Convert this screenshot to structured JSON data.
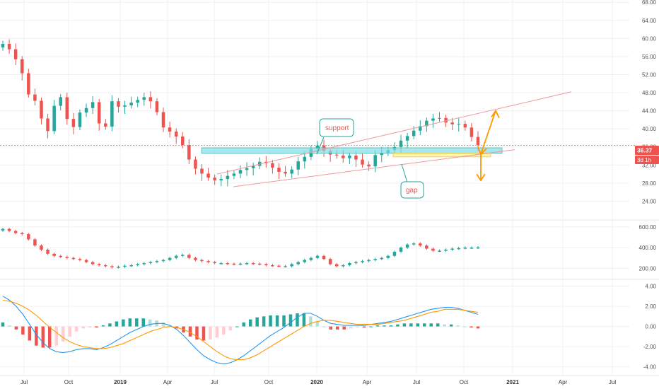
{
  "chart_data": [
    {
      "type": "candlestick",
      "pane": "price",
      "title": "",
      "x_ticks": [
        "Jul",
        "Oct",
        "2019",
        "Apr",
        "Jul",
        "Oct",
        "2020",
        "Apr",
        "Jul",
        "Oct",
        "2021",
        "Apr",
        "Jul"
      ],
      "year_ticks": [
        "2019",
        "2020",
        "2021"
      ],
      "y_ticks": [
        "24.00",
        "28.00",
        "32.00",
        "36.00",
        "40.00",
        "44.00",
        "48.00",
        "52.00",
        "56.00",
        "60.00",
        "64.00",
        "68.00"
      ],
      "ylim": [
        20,
        68.5
      ],
      "last_price_label": "36.37",
      "countdown_label": "3d 1h",
      "last_price": 36.37,
      "annotations": [
        {
          "text": "support",
          "type": "callout"
        },
        {
          "text": "gap",
          "type": "callout"
        }
      ],
      "support_zone": {
        "from": 34.6,
        "to": 35.8
      },
      "gap_zone": {
        "from": 33.8,
        "to": 34.6
      },
      "series": [
        {
          "name": "close",
          "values": [
            58.8,
            57.6,
            55.4,
            52.3,
            47.6,
            46.2,
            42.3,
            39.5,
            45.1,
            47.0,
            42.2,
            40.4,
            43.6,
            44.6,
            45.9,
            41.2,
            40.5,
            46.1,
            44.9,
            45.2,
            45.8,
            46.4,
            47.0,
            46.1,
            43.7,
            40.3,
            39.4,
            38.3,
            36.4,
            33.2,
            31.2,
            30.1,
            29.2,
            28.6,
            28.9,
            29.6,
            30.1,
            30.9,
            31.3,
            31.8,
            32.7,
            32.4,
            31.4,
            30.5,
            30.1,
            31.0,
            32.8,
            33.8,
            35.6,
            36.3,
            35.1,
            34.3,
            34.1,
            33.5,
            34.1,
            33.2,
            32.1,
            31.7,
            34.2,
            34.7,
            35.3,
            36.0,
            37.4,
            38.4,
            39.6,
            40.6,
            41.8,
            42.3,
            42.4,
            41.4,
            41.0,
            41.1,
            40.3,
            38.2,
            36.4
          ]
        }
      ],
      "trend_lines": [
        "upper channel",
        "lower channel",
        "support"
      ],
      "projection_arrows": [
        "up",
        "down"
      ]
    },
    {
      "type": "candlestick",
      "pane": "volume-like",
      "y_ticks": [
        "200.00",
        "400.00",
        "600.00"
      ],
      "ylim": [
        100,
        660
      ],
      "series": [
        {
          "name": "close",
          "values": [
            580,
            560,
            540,
            530,
            480,
            420,
            380,
            340,
            320,
            310,
            300,
            290,
            280,
            260,
            240,
            230,
            220,
            210,
            215,
            225,
            230,
            240,
            250,
            260,
            270,
            280,
            300,
            320,
            330,
            300,
            280,
            270,
            260,
            250,
            250,
            245,
            240,
            245,
            250,
            245,
            240,
            230,
            225,
            220,
            220,
            240,
            260,
            280,
            300,
            320,
            290,
            240,
            220,
            230,
            250,
            260,
            270,
            280,
            290,
            300,
            320,
            360,
            400,
            430,
            440,
            420,
            390,
            370,
            370,
            380,
            390,
            395,
            400,
            400,
            402
          ]
        }
      ]
    },
    {
      "type": "line",
      "pane": "macd",
      "y_ticks": [
        "-4.00",
        "-2.00",
        "0.00",
        "2.00",
        "4.00"
      ],
      "ylim": [
        -4.8,
        4.6
      ],
      "series": [
        {
          "name": "macd",
          "color": "#2196f3",
          "values": [
            3.0,
            2.6,
            2.0,
            1.2,
            0.2,
            -0.8,
            -1.6,
            -2.2,
            -2.5,
            -2.6,
            -2.5,
            -2.3,
            -2.2,
            -2.2,
            -2.3,
            -2.1,
            -1.8,
            -1.4,
            -1.0,
            -0.6,
            -0.3,
            0.0,
            0.2,
            0.3,
            0.3,
            0.1,
            -0.3,
            -0.9,
            -1.6,
            -2.3,
            -2.9,
            -3.3,
            -3.6,
            -3.7,
            -3.6,
            -3.3,
            -2.9,
            -2.4,
            -1.9,
            -1.4,
            -0.9,
            -0.5,
            -0.1,
            0.4,
            0.9,
            1.3,
            1.3,
            1.0,
            0.6,
            0.3,
            0.2,
            0.1,
            0.1,
            0.1,
            0.1,
            0.2,
            0.3,
            0.4,
            0.5,
            0.7,
            0.9,
            1.1,
            1.3,
            1.5,
            1.7,
            1.8,
            1.9,
            1.9,
            1.8,
            1.6,
            1.4,
            1.2
          ]
        },
        {
          "name": "signal",
          "color": "#ff9800",
          "values": [
            2.6,
            2.5,
            2.3,
            2.0,
            1.6,
            1.1,
            0.5,
            -0.1,
            -0.6,
            -1.1,
            -1.5,
            -1.8,
            -2.0,
            -2.1,
            -2.2,
            -2.2,
            -2.1,
            -1.9,
            -1.7,
            -1.4,
            -1.1,
            -0.8,
            -0.5,
            -0.3,
            -0.1,
            0.0,
            -0.1,
            -0.3,
            -0.6,
            -1.0,
            -1.5,
            -2.0,
            -2.5,
            -2.9,
            -3.2,
            -3.3,
            -3.3,
            -3.1,
            -2.8,
            -2.4,
            -2.0,
            -1.6,
            -1.2,
            -0.8,
            -0.4,
            0.0,
            0.3,
            0.5,
            0.6,
            0.6,
            0.5,
            0.4,
            0.3,
            0.2,
            0.2,
            0.2,
            0.2,
            0.3,
            0.4,
            0.5,
            0.6,
            0.8,
            1.0,
            1.2,
            1.4,
            1.5,
            1.7,
            1.7,
            1.7,
            1.6,
            1.5,
            1.4
          ]
        }
      ],
      "histogram": [
        0.4,
        0.1,
        -0.3,
        -0.8,
        -1.4,
        -1.9,
        -2.1,
        -2.1,
        -1.9,
        -1.5,
        -1.0,
        -0.5,
        -0.2,
        -0.1,
        -0.1,
        0.1,
        0.3,
        0.5,
        0.7,
        0.8,
        0.8,
        0.8,
        0.7,
        0.6,
        0.4,
        0.1,
        -0.2,
        -0.6,
        -1.0,
        -1.3,
        -1.4,
        -1.3,
        -1.1,
        -0.8,
        -0.4,
        0.0,
        0.4,
        0.7,
        0.9,
        1.0,
        1.1,
        1.1,
        1.1,
        1.2,
        1.3,
        1.3,
        1.0,
        0.5,
        0.0,
        -0.3,
        -0.3,
        -0.3,
        -0.2,
        -0.1,
        -0.1,
        0.0,
        0.1,
        0.1,
        0.1,
        0.2,
        0.3,
        0.3,
        0.3,
        0.3,
        0.3,
        0.3,
        0.2,
        0.2,
        0.1,
        0.0,
        -0.1,
        -0.2
      ]
    }
  ],
  "colors": {
    "up": "#26a69a",
    "down": "#ef5350",
    "hist_up": "#26a69a",
    "hist_up_light": "#b2dfdb",
    "hist_down": "#ef5350",
    "hist_down_light": "#ffcdd2",
    "price_tag": "#ef5350",
    "support_zone": "#80deea",
    "gap_zone": "#fff59d",
    "arrow": "#ff9800",
    "channel": "#ef9a9a",
    "callout_border": "#26a69a",
    "callout_text": "#ef5350"
  }
}
